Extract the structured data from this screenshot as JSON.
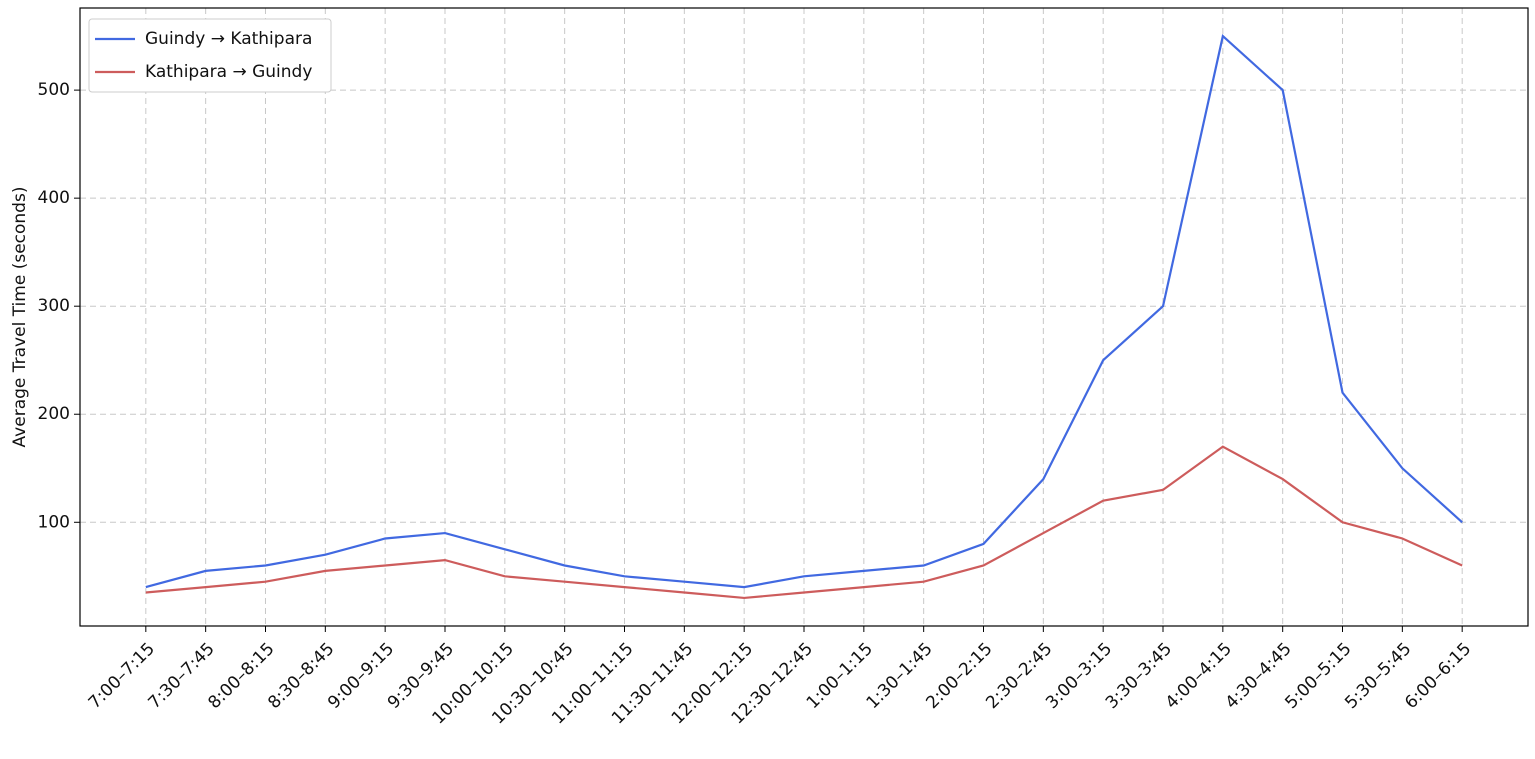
{
  "chart_data": {
    "type": "line",
    "ylabel": "Average Travel Time (seconds)",
    "categories": [
      "7:00–7:15",
      "7:30–7:45",
      "8:00–8:15",
      "8:30–8:45",
      "9:00–9:15",
      "9:30–9:45",
      "10:00–10:15",
      "10:30–10:45",
      "11:00–11:15",
      "11:30–11:45",
      "12:00–12:15",
      "12:30–12:45",
      "1:00–1:15",
      "1:30–1:45",
      "2:00–2:15",
      "2:30–2:45",
      "3:00–3:15",
      "3:30–3:45",
      "4:00–4:15",
      "4:30–4:45",
      "5:00–5:15",
      "5:30–5:45",
      "6:00–6:15"
    ],
    "series": [
      {
        "name": "Guindy → Kathipara",
        "color": "#4169e1",
        "values": [
          40,
          55,
          60,
          70,
          85,
          90,
          75,
          60,
          50,
          45,
          40,
          50,
          55,
          60,
          80,
          140,
          250,
          300,
          550,
          500,
          220,
          150,
          100
        ]
      },
      {
        "name": "Kathipara → Guindy",
        "color": "#cd5c5c",
        "values": [
          35,
          40,
          45,
          55,
          60,
          65,
          50,
          45,
          40,
          35,
          30,
          35,
          40,
          45,
          60,
          90,
          120,
          130,
          170,
          140,
          100,
          85,
          60
        ]
      }
    ],
    "ylim": [
      4,
      576
    ],
    "yticks": [
      100,
      200,
      300,
      400,
      500
    ],
    "grid": true,
    "legend": "upper left"
  }
}
